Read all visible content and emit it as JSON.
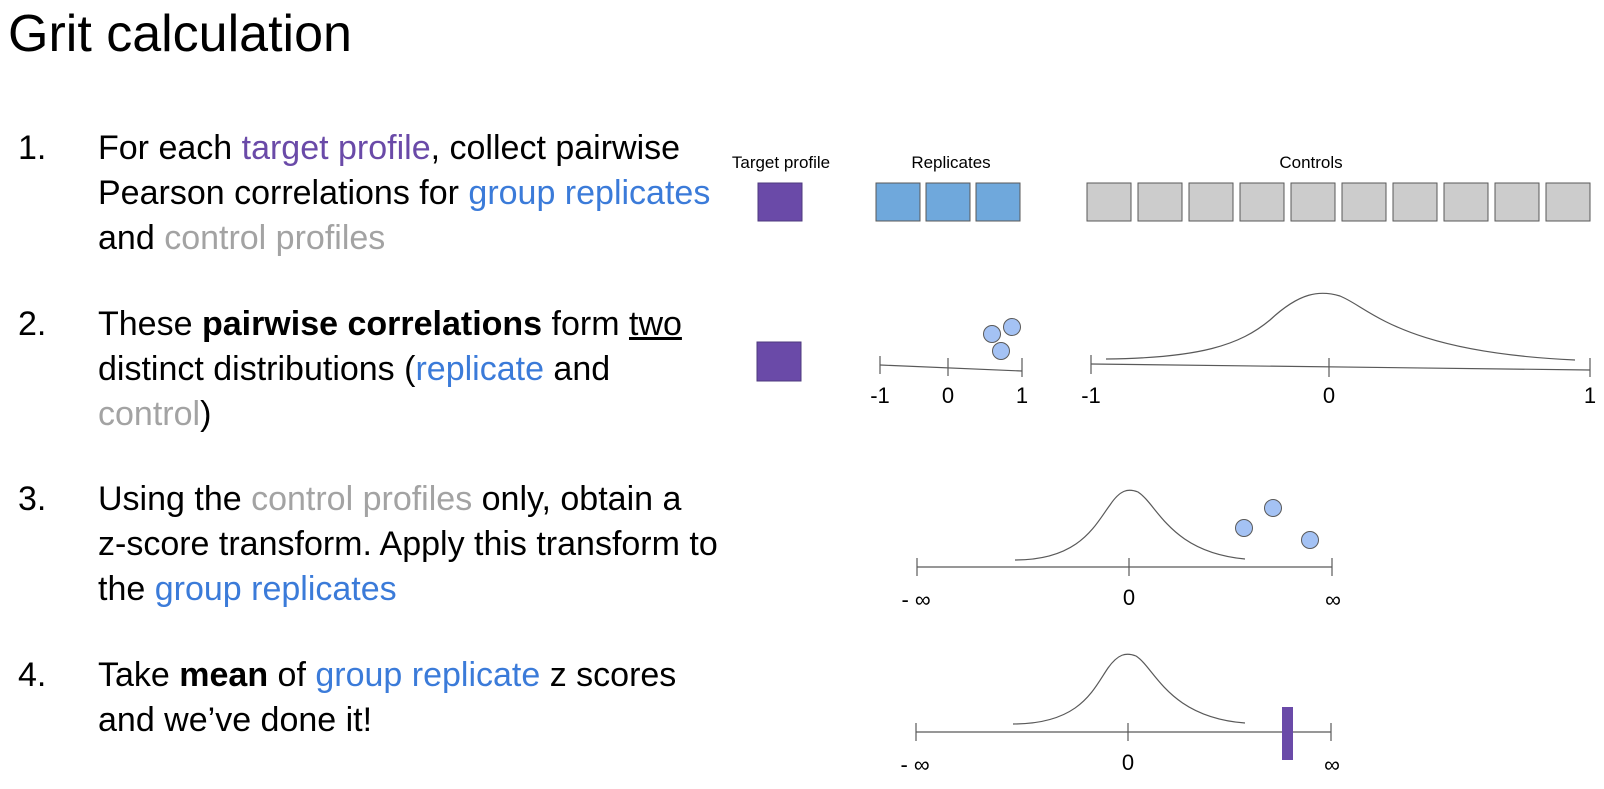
{
  "title": "Grit calculation",
  "steps": [
    {
      "num": "1.",
      "runs": [
        {
          "t": "For each ",
          "s": "n"
        },
        {
          "t": "target profile",
          "s": "purple"
        },
        {
          "t": ", collect pairwise Pearson correlations for ",
          "s": "n"
        },
        {
          "t": "group replicates",
          "s": "blue"
        },
        {
          "t": " and ",
          "s": "n"
        },
        {
          "t": "control profiles",
          "s": "gray"
        }
      ]
    },
    {
      "num": "2.",
      "runs": [
        {
          "t": "These ",
          "s": "n"
        },
        {
          "t": "pairwise correlations",
          "s": "b"
        },
        {
          "t": " form ",
          "s": "n"
        },
        {
          "t": "two",
          "s": "u"
        },
        {
          "t": " distinct distributions (",
          "s": "n"
        },
        {
          "t": "replicate",
          "s": "blue"
        },
        {
          "t": " and ",
          "s": "n"
        },
        {
          "t": "control",
          "s": "gray"
        },
        {
          "t": ")",
          "s": "n"
        }
      ]
    },
    {
      "num": "3.",
      "runs": [
        {
          "t": "Using the ",
          "s": "n"
        },
        {
          "t": "control profiles",
          "s": "gray"
        },
        {
          "t": " only, obtain a z-score transform. Apply this transform to the ",
          "s": "n"
        },
        {
          "t": "group replicates",
          "s": "blue"
        }
      ]
    },
    {
      "num": "4.",
      "runs": [
        {
          "t": "Take ",
          "s": "n"
        },
        {
          "t": "mean",
          "s": "b"
        },
        {
          "t": " of ",
          "s": "n"
        },
        {
          "t": "group replicate",
          "s": "blue"
        },
        {
          "t": " z scores and we’ve done it!",
          "s": "n"
        }
      ]
    }
  ],
  "diagram": {
    "labels": {
      "target": "Target profile",
      "replicates": "Replicates",
      "controls": "Controls"
    },
    "replicate_count": 3,
    "control_count": 10,
    "axis_small_ticks": [
      "-1",
      "0",
      "1"
    ],
    "axis_large_ticks": [
      "-1",
      "0",
      "1"
    ],
    "axis_z_ticks": [
      "- ∞",
      "0",
      "∞"
    ],
    "colors": {
      "target": "#6a4aa8",
      "replicate": "#6fa8dc",
      "replicate_dot": "#a4c2f4",
      "control": "#cccccc",
      "line": "#595959"
    }
  }
}
